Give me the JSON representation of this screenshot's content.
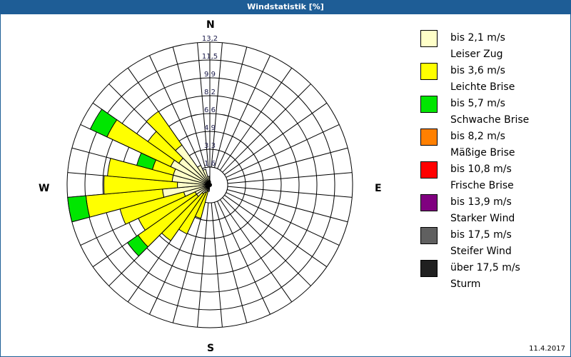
{
  "title": "Windstatistik [%]",
  "date": "11.4.2017",
  "directions": {
    "n": "N",
    "e": "E",
    "s": "S",
    "w": "W"
  },
  "legend": [
    {
      "range": "bis 2,1 m/s",
      "name": "Leiser Zug",
      "color": "#ffffc8"
    },
    {
      "range": "bis 3,6 m/s",
      "name": "Leichte Brise",
      "color": "#ffff00"
    },
    {
      "range": "bis 5,7 m/s",
      "name": "Schwache Brise",
      "color": "#00e600"
    },
    {
      "range": "bis 8,2 m/s",
      "name": "Mäßige Brise",
      "color": "#ff8000"
    },
    {
      "range": "bis 10,8 m/s",
      "name": "Frische Brise",
      "color": "#ff0000"
    },
    {
      "range": "bis 13,9 m/s",
      "name": "Starker Wind",
      "color": "#800080"
    },
    {
      "range": "bis 17,5 m/s",
      "name": "Steifer Wind",
      "color": "#606060"
    },
    {
      "range": "über 17,5 m/s",
      "name": "Sturm",
      "color": "#202020"
    }
  ],
  "chart_data": {
    "type": "polar-bar (wind rose, stacked)",
    "title": "Windstatistik [%]",
    "radial_ticks": [
      "1,6",
      "3,3",
      "4,9",
      "6,6",
      "8,2",
      "9,9",
      "11,5",
      "13,2"
    ],
    "rmax": 13.2,
    "sector_width_deg": 10,
    "series_names": [
      "Leiser Zug",
      "Leichte Brise",
      "Schwache Brise"
    ],
    "sectors": [
      {
        "dir": 10,
        "values": [
          0.3,
          0,
          0
        ]
      },
      {
        "dir": 190,
        "values": [
          0.6,
          0,
          0
        ]
      },
      {
        "dir": 200,
        "values": [
          0.6,
          2.6,
          0
        ]
      },
      {
        "dir": 210,
        "values": [
          0.8,
          4.2,
          0
        ]
      },
      {
        "dir": 220,
        "values": [
          1.0,
          5.3,
          0
        ]
      },
      {
        "dir": 230,
        "values": [
          1.5,
          6.6,
          1.2
        ]
      },
      {
        "dir": 240,
        "values": [
          1.5,
          5.8,
          0
        ]
      },
      {
        "dir": 250,
        "values": [
          2.5,
          6.1,
          0
        ]
      },
      {
        "dir": 260,
        "values": [
          4.4,
          7.1,
          1.7
        ]
      },
      {
        "dir": 270,
        "values": [
          3.0,
          6.8,
          0
        ]
      },
      {
        "dir": 280,
        "values": [
          3.5,
          6.0,
          0
        ]
      },
      {
        "dir": 290,
        "values": [
          3.5,
          2.0,
          1.5
        ]
      },
      {
        "dir": 300,
        "values": [
          4.0,
          6.5,
          1.7
        ]
      },
      {
        "dir": 310,
        "values": [
          3.5,
          3.5,
          0
        ]
      },
      {
        "dir": 320,
        "values": [
          4.5,
          3.8,
          0
        ]
      },
      {
        "dir": 330,
        "values": [
          2.0,
          0,
          0
        ]
      },
      {
        "dir": 340,
        "values": [
          1.5,
          0,
          0
        ]
      },
      {
        "dir": 350,
        "values": [
          0.8,
          0,
          0
        ]
      },
      {
        "dir": 0,
        "values": [
          0.4,
          0,
          0
        ]
      }
    ]
  }
}
